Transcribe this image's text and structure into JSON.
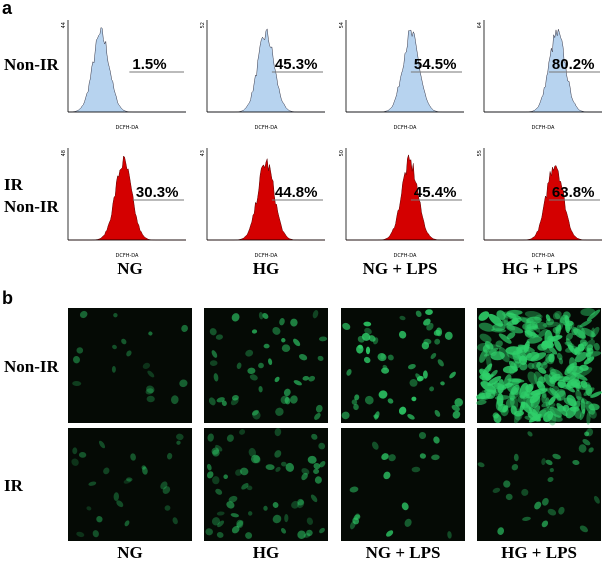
{
  "panel_a": {
    "label": "a",
    "rows": [
      {
        "label_lines": [
          "Non-IR"
        ],
        "histograms": [
          {
            "y_max": "44",
            "x_label": "DCFH-DA",
            "percent": "1.5%"
          },
          {
            "y_max": "52",
            "x_label": "DCFH-DA",
            "percent": "45.3%"
          },
          {
            "y_max": "54",
            "x_label": "DCFH-DA",
            "percent": "54.5%"
          },
          {
            "y_max": "64",
            "x_label": "DCFH-DA",
            "percent": "80.2%"
          }
        ]
      },
      {
        "label_lines": [
          "IR",
          "Non-IR"
        ],
        "histograms": [
          {
            "y_max": "48",
            "x_label": "DCFH-DA",
            "percent": "30.3%"
          },
          {
            "y_max": "43",
            "x_label": "DCFH-DA",
            "percent": "44.8%"
          },
          {
            "y_max": "50",
            "x_label": "DCFH-DA",
            "percent": "45.4%"
          },
          {
            "y_max": "55",
            "x_label": "DCFH-DA",
            "percent": "63.8%"
          }
        ]
      }
    ],
    "column_labels": [
      "NG",
      "HG",
      "NG + LPS",
      "HG + LPS"
    ]
  },
  "panel_b": {
    "label": "b",
    "row_labels": [
      "Non-IR",
      "IR"
    ],
    "column_labels": [
      "NG",
      "HG",
      "NG + LPS",
      "HG + LPS"
    ]
  }
}
